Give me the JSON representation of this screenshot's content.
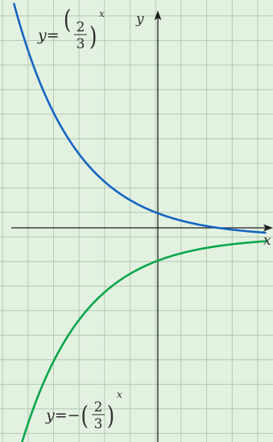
{
  "chart_data": {
    "type": "line",
    "title": "",
    "xlabel": "x",
    "ylabel": "y",
    "xlim": [
      -6.1,
      4.6
    ],
    "ylim": [
      -8.35,
      9.65
    ],
    "grid": true,
    "colors": {
      "background": "#e3f1e1",
      "grid": "#a9c4a9",
      "axis": "#1f1f1f"
    },
    "series": [
      {
        "id": "upper",
        "function": "y=(2/3)^x",
        "label": {
          "prefix": "y=",
          "numerator": "2",
          "denominator": "3",
          "exponent": "x"
        },
        "color": "#1565c0",
        "x_domain": [
          -5.55,
          4.3
        ]
      },
      {
        "id": "lower",
        "function": "y=-(2/3)^x",
        "label": {
          "prefix": "y=−",
          "numerator": "2",
          "denominator": "3",
          "exponent": "x"
        },
        "color": "#0aa64b",
        "x_domain": [
          -5.3,
          4.3
        ]
      }
    ]
  }
}
